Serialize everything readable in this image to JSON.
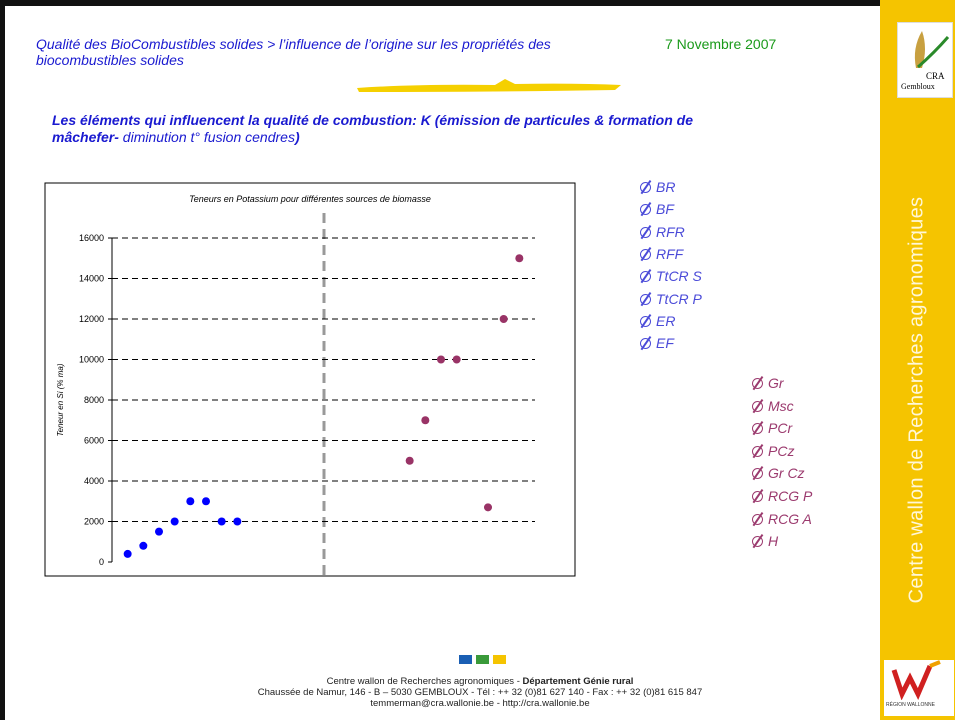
{
  "header": {
    "title": "Qualité des BioCombustibles solides > l’influence de l’origine sur les propriétés des biocombustibles solides",
    "date": "7 Novembre 2007"
  },
  "subtitle": {
    "part1": "Les éléments qui influencent la qualité de combustion: K (émission de particules & formation de mâchefer-",
    "part2": " diminution t° fusion cendres",
    "part3": ")"
  },
  "chart_data": {
    "type": "scatter",
    "title": "Teneurs en Potassium pour différentes sources de biomasse",
    "y_label": "Teneur en Si (% ma)",
    "xlim": [
      0,
      27
    ],
    "ylim": [
      0,
      16000
    ],
    "yticks": [
      0,
      2000,
      4000,
      6000,
      8000,
      10000,
      12000,
      14000,
      16000
    ],
    "grid": true,
    "series": [
      {
        "color": "#0000ff",
        "x": [
          1,
          2,
          3,
          4,
          5,
          6,
          7,
          8
        ],
        "values": [
          400,
          800,
          1500,
          2000,
          3000,
          3000,
          2000,
          2000
        ],
        "point_labels": [
          "BR",
          "BF",
          "RFR",
          "RFF",
          "TtCR S",
          "TtCR P",
          "ER",
          "EF"
        ]
      },
      {
        "color": "#993366",
        "x": [
          19,
          20,
          21,
          22,
          23,
          24,
          25,
          26
        ],
        "values": [
          5000,
          7000,
          10000,
          10000,
          null,
          2700,
          12000,
          15000
        ],
        "point_labels": [
          "Gr",
          "Msc",
          "PCr",
          "PCz",
          "Gr Cz",
          "RCG P",
          "RCG A",
          "H"
        ]
      }
    ]
  },
  "sidebar": {
    "text": "Centre wallon de Recherches agronomiques",
    "logo": "CRA",
    "logo_sub": "Gembloux",
    "region": "RÉGION WALLONNE"
  },
  "footer": {
    "line1_a": "Centre wallon de Recherches agronomiques - ",
    "line1_b": "Département Génie rural",
    "line2": "Chaussée de Namur, 146 - B – 5030  GEMBLOUX - Tél : ++ 32 (0)81 627 140 - Fax : ++ 32 (0)81 615 847",
    "line3": "temmerman@cra.wallonie.be  - http://cra.wallonie.be"
  }
}
